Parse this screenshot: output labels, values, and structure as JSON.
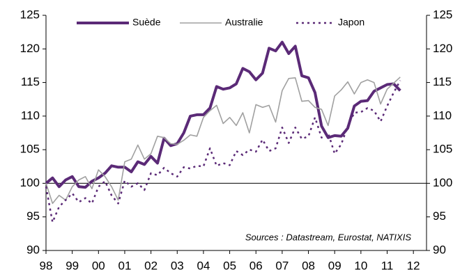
{
  "chart_data": {
    "type": "line",
    "annotation": "Sources : Datastream, Eurostat, NATIXIS",
    "x": [
      1998,
      1998.25,
      1998.5,
      1998.75,
      1999,
      1999.25,
      1999.5,
      1999.75,
      2000,
      2000.25,
      2000.5,
      2000.75,
      2001,
      2001.25,
      2001.5,
      2001.75,
      2002,
      2002.25,
      2002.5,
      2002.75,
      2003,
      2003.25,
      2003.5,
      2003.75,
      2004,
      2004.25,
      2004.5,
      2004.75,
      2005,
      2005.25,
      2005.5,
      2005.75,
      2006,
      2006.25,
      2006.5,
      2006.75,
      2007,
      2007.25,
      2007.5,
      2007.75,
      2008,
      2008.25,
      2008.5,
      2008.75,
      2009,
      2009.25,
      2009.5,
      2009.75,
      2010,
      2010.25,
      2010.5,
      2010.75,
      2011,
      2011.25,
      2011.5
    ],
    "series": [
      {
        "name": "Suède",
        "color": "#5b2a77",
        "style": "solid",
        "width": 4,
        "values": [
          100,
          100.8,
          99.5,
          100.5,
          101,
          99.5,
          99.4,
          100.3,
          100.8,
          101.5,
          102.6,
          102.4,
          102.4,
          101.7,
          103.2,
          102.8,
          104,
          103,
          106.7,
          105.6,
          105.9,
          107.5,
          110,
          110.2,
          110.2,
          111.2,
          114.4,
          114,
          114.2,
          114.8,
          117.1,
          116.6,
          115.4,
          116.4,
          120.1,
          119.7,
          121,
          119.3,
          120.4,
          116,
          115.7,
          113.5,
          108.5,
          106.8,
          107.1,
          107,
          108.2,
          111.5,
          112.2,
          112.3,
          113.7,
          114.2,
          114.7,
          114.8,
          113.8
        ]
      },
      {
        "name": "Australie",
        "color": "#a0a0a0",
        "style": "solid",
        "width": 1.6,
        "values": [
          100,
          97,
          98.2,
          97.5,
          99.5,
          100.5,
          101,
          99.2,
          102,
          101,
          99.5,
          97.5,
          103.2,
          103.6,
          105.7,
          103.6,
          104.4,
          107,
          106.8,
          105.9,
          105.8,
          106.4,
          107.2,
          107,
          109.8,
          110.8,
          111.6,
          108.9,
          109.8,
          108.6,
          110.5,
          107.5,
          111.7,
          111.3,
          111.6,
          109.1,
          113.8,
          115.6,
          115.7,
          112.2,
          112.3,
          111.3,
          111,
          108.6,
          113,
          113.9,
          115.1,
          113.3,
          115,
          115.4,
          115,
          111.8,
          114,
          114.9,
          115.8
        ]
      },
      {
        "name": "Japon",
        "color": "#5b2a77",
        "style": "dashed",
        "width": 2.5,
        "values": [
          99.5,
          94.2,
          96.5,
          97.5,
          98.5,
          97.2,
          97.8,
          97,
          99.5,
          100.3,
          98.2,
          97,
          100.4,
          99.5,
          100,
          99,
          101.5,
          101.2,
          102.3,
          101.5,
          101,
          102.4,
          102.2,
          102.6,
          102.5,
          105.2,
          102.6,
          103,
          102.7,
          104.8,
          104.2,
          105,
          104.7,
          106.5,
          104.8,
          105.2,
          108.3,
          106,
          108.3,
          106.6,
          107,
          109.8,
          106.8,
          107.5,
          104.4,
          105.8,
          108.5,
          110.5,
          110.6,
          111.2,
          110.8,
          109.2,
          111.5,
          113.5,
          115.3
        ]
      }
    ],
    "xlim": [
      1998,
      2012.5
    ],
    "xticks": [
      {
        "value": 1998,
        "label": "98"
      },
      {
        "value": 1999,
        "label": "99"
      },
      {
        "value": 2000,
        "label": "00"
      },
      {
        "value": 2001,
        "label": "01"
      },
      {
        "value": 2002,
        "label": "02"
      },
      {
        "value": 2003,
        "label": "03"
      },
      {
        "value": 2004,
        "label": "04"
      },
      {
        "value": 2005,
        "label": "05"
      },
      {
        "value": 2006,
        "label": "06"
      },
      {
        "value": 2007,
        "label": "07"
      },
      {
        "value": 2008,
        "label": "08"
      },
      {
        "value": 2009,
        "label": "09"
      },
      {
        "value": 2010,
        "label": "10"
      },
      {
        "value": 2011,
        "label": "11"
      },
      {
        "value": 2012,
        "label": "12"
      }
    ],
    "ylim": [
      90,
      125
    ],
    "yticks": [
      90,
      95,
      100,
      105,
      110,
      115,
      120,
      125
    ],
    "y2lim": [
      90,
      125
    ],
    "y2ticks": [
      90,
      95,
      100,
      105,
      110,
      115,
      120,
      125
    ],
    "reference_line": 100,
    "legend": "top"
  }
}
